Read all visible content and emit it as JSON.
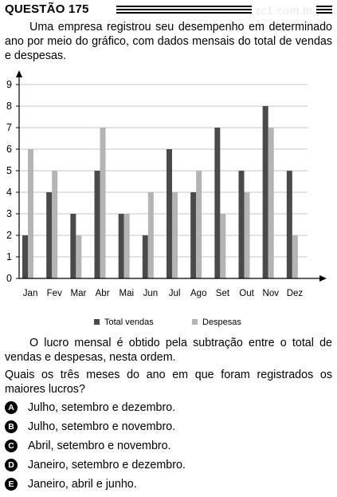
{
  "header": {
    "question_label": "QUESTÃO 175",
    "watermark": "zc1.com.br"
  },
  "intro_text": "Uma empresa registrou seu desempenho em determinado ano por meio do gráfico, com dados mensais do total de vendas e despesas.",
  "chart_data": {
    "type": "bar",
    "categories": [
      "Jan",
      "Fev",
      "Mar",
      "Abr",
      "Mai",
      "Jun",
      "Jul",
      "Ago",
      "Set",
      "Out",
      "Nov",
      "Dez"
    ],
    "series": [
      {
        "name": "Total vendas",
        "values": [
          2,
          4,
          3,
          5,
          3,
          2,
          6,
          4,
          7,
          5,
          8,
          5
        ],
        "color": "#4a4a4a"
      },
      {
        "name": "Despesas",
        "values": [
          6,
          5,
          2,
          7,
          3,
          4,
          4,
          5,
          3,
          4,
          7,
          2
        ],
        "color": "#b4b4b4"
      }
    ],
    "ylim": [
      0,
      9
    ],
    "yticks": [
      "0",
      "1",
      "2",
      "3",
      "4",
      "5",
      "6",
      "7",
      "8",
      "9"
    ],
    "grid": true,
    "legend_position": "bottom"
  },
  "paragraph1": "O lucro mensal é obtido pela subtração entre o total de vendas e despesas, nesta ordem.",
  "question_text": "Quais os três meses do ano em que foram registrados os maiores lucros?",
  "options": [
    {
      "letter": "A",
      "text": "Julho, setembro e dezembro."
    },
    {
      "letter": "B",
      "text": "Julho, setembro e novembro."
    },
    {
      "letter": "C",
      "text": "Abril, setembro e novembro."
    },
    {
      "letter": "D",
      "text": "Janeiro, setembro e dezembro."
    },
    {
      "letter": "E",
      "text": "Janeiro, abril e junho."
    }
  ]
}
